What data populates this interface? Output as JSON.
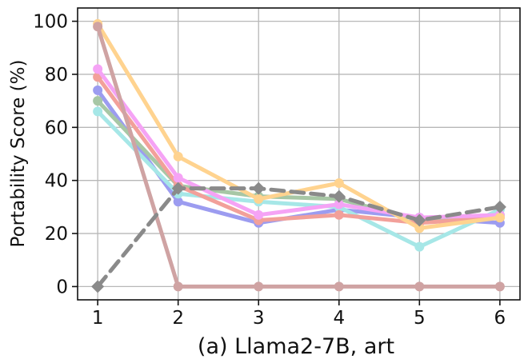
{
  "chart_data": {
    "type": "line",
    "caption": "(a) Llama2-7B, art",
    "ylabel": "Portability Score (%)",
    "xlabel": "",
    "x": [
      1,
      2,
      3,
      4,
      5,
      6
    ],
    "xlim": [
      0.75,
      6.25
    ],
    "ylim": [
      -5,
      105
    ],
    "yticks": [
      0,
      20,
      40,
      60,
      80,
      100
    ],
    "xticks": [
      1,
      2,
      3,
      4,
      5,
      6
    ],
    "grid": true,
    "series": [
      {
        "color": "#9c9cf0",
        "style": "solid",
        "marker": "circle",
        "values": [
          74,
          32,
          24,
          29,
          26,
          24
        ]
      },
      {
        "color": "#a6e7e7",
        "style": "solid",
        "marker": "circle",
        "values": [
          66,
          35,
          32,
          30,
          15,
          29
        ]
      },
      {
        "color": "#a7c7a5",
        "style": "solid",
        "marker": "circle",
        "values": [
          70,
          38,
          34,
          33,
          25,
          27
        ]
      },
      {
        "color": "#f2a09a",
        "style": "solid",
        "marker": "circle",
        "values": [
          79,
          38,
          25,
          27,
          24,
          26
        ]
      },
      {
        "color": "#f5a3f5",
        "style": "solid",
        "marker": "circle",
        "values": [
          82,
          41,
          27,
          31,
          26,
          27
        ]
      },
      {
        "color": "#ffd38f",
        "style": "solid",
        "marker": "circle",
        "values": [
          99,
          49,
          33,
          39,
          22,
          26
        ]
      },
      {
        "color": "#cfa3a3",
        "style": "solid",
        "marker": "circle",
        "values": [
          98,
          0,
          0,
          0,
          0,
          0
        ]
      },
      {
        "color": "#8a8a8a",
        "style": "dashed",
        "marker": "diamond",
        "values": [
          0,
          37,
          37,
          34,
          25,
          30
        ]
      }
    ]
  }
}
